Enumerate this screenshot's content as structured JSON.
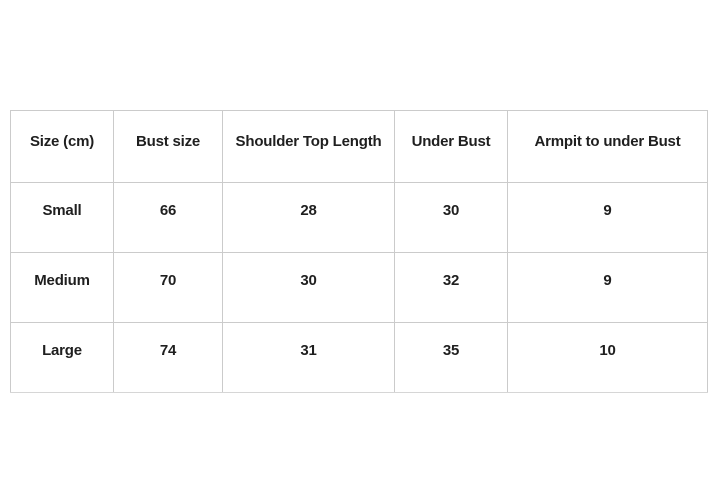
{
  "colors": {
    "background": "#ffffff",
    "table_border": "#cbcbcb",
    "text": "#1f1f1f"
  },
  "chart_data": {
    "type": "table",
    "columns": [
      "Size (cm)",
      "Bust size",
      "Shoulder Top Length",
      "Under Bust",
      "Armpit to under Bust"
    ],
    "rows": [
      [
        "Small",
        "66",
        "28",
        "30",
        "9"
      ],
      [
        "Medium",
        "70",
        "30",
        "32",
        "9"
      ],
      [
        "Large",
        "74",
        "31",
        "35",
        "10"
      ]
    ]
  }
}
